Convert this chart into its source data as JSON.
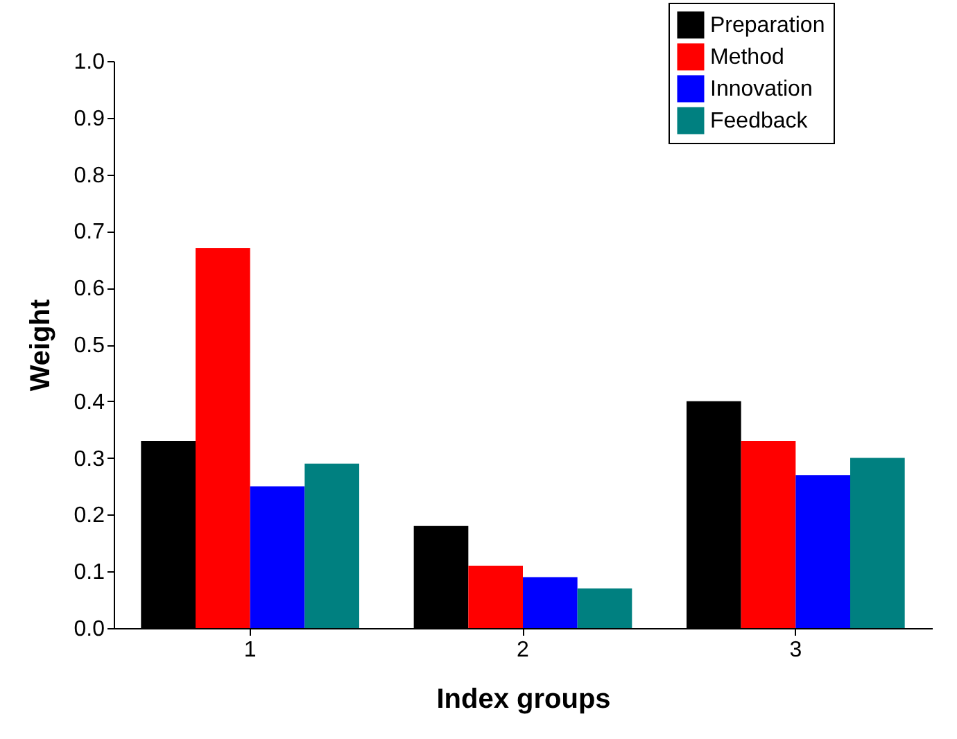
{
  "chart_data": {
    "type": "bar",
    "xlabel": "Index groups",
    "ylabel": "Weight",
    "categories": [
      "1",
      "2",
      "3"
    ],
    "series": [
      {
        "name": "Preparation",
        "color": "#000000",
        "values": [
          0.33,
          0.18,
          0.4
        ]
      },
      {
        "name": "Method",
        "color": "#ff0000",
        "values": [
          0.67,
          0.11,
          0.33
        ]
      },
      {
        "name": "Innovation",
        "color": "#0000ff",
        "values": [
          0.25,
          0.09,
          0.27
        ]
      },
      {
        "name": "Feedback",
        "color": "#008080",
        "values": [
          0.29,
          0.07,
          0.3
        ]
      }
    ],
    "ylim": [
      0,
      1
    ],
    "yticks": [
      {
        "value": 0,
        "label": "0.0"
      },
      0.1,
      0.2,
      0.3,
      0.4,
      0.5,
      0.6,
      0.7,
      0.8,
      0.9,
      {
        "value": 1,
        "label": "1.0"
      }
    ],
    "grid": false,
    "legend": "top right"
  }
}
